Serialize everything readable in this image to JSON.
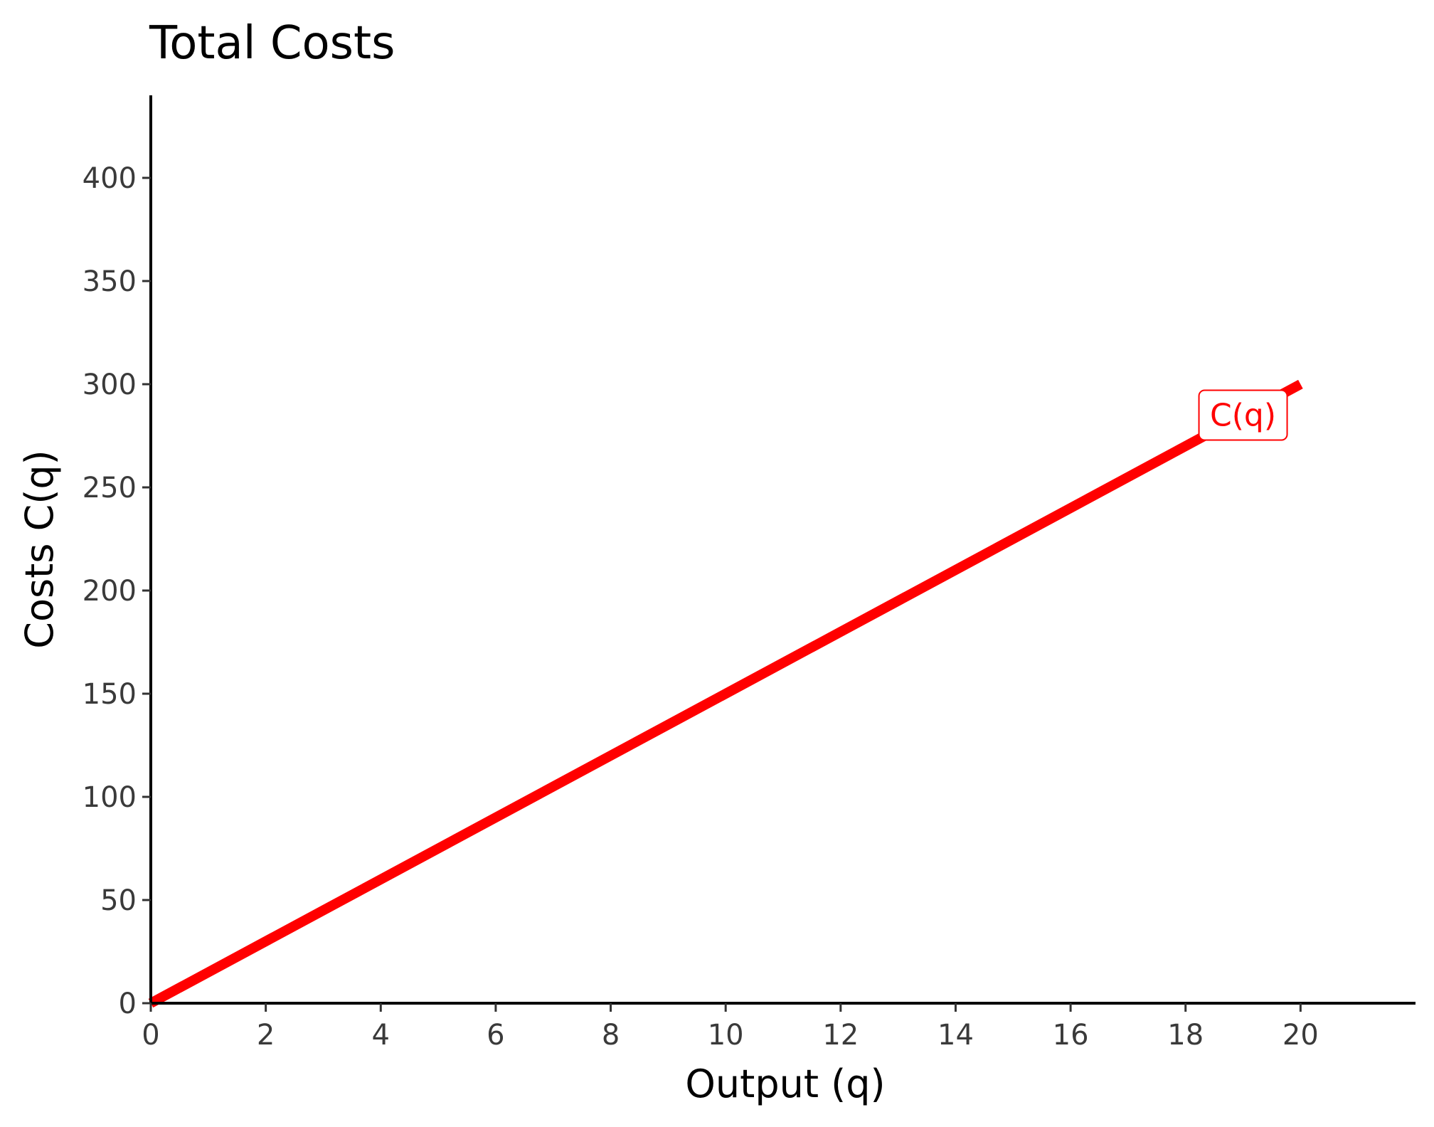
{
  "chart_data": {
    "type": "line",
    "title": "Total Costs",
    "xlabel": "Output (q)",
    "ylabel": "Costs C(q)",
    "xlim": [
      0,
      22
    ],
    "ylim": [
      0,
      440
    ],
    "x_ticks": [
      0,
      2,
      4,
      6,
      8,
      10,
      12,
      14,
      16,
      18,
      20
    ],
    "y_ticks": [
      0,
      50,
      100,
      150,
      200,
      250,
      300,
      350,
      400
    ],
    "grid": false,
    "series": [
      {
        "name": "C(q)",
        "color": "#ff0000",
        "x": [
          0,
          20
        ],
        "y": [
          0,
          300
        ]
      }
    ],
    "annotations": [
      {
        "text": "C(q)",
        "x": 19,
        "y": 285,
        "color": "#ff0000"
      }
    ]
  }
}
